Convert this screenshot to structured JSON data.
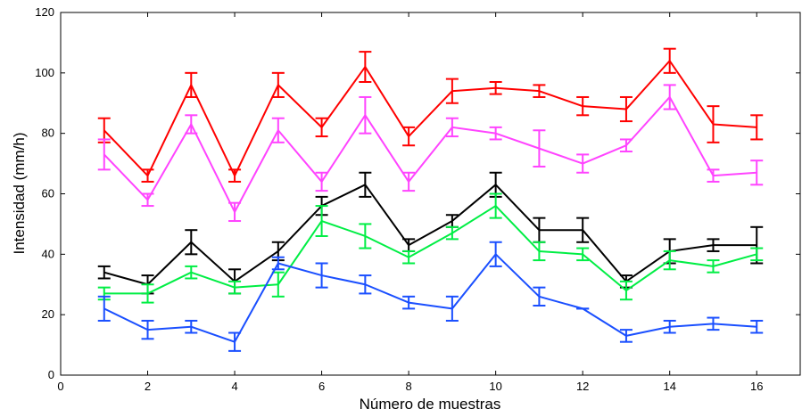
{
  "chart_data": {
    "type": "line",
    "title": "",
    "xlabel": "Número de muestras",
    "ylabel": "Intensidad (mm/h)",
    "xlim": [
      0,
      17
    ],
    "ylim": [
      0,
      120
    ],
    "xticks": [
      0,
      2,
      4,
      6,
      8,
      10,
      12,
      14,
      16
    ],
    "yticks": [
      0,
      20,
      40,
      60,
      80,
      100,
      120
    ],
    "grid": false,
    "legend": "none",
    "x": [
      1,
      2,
      3,
      4,
      5,
      6,
      7,
      8,
      9,
      10,
      11,
      12,
      13,
      14,
      15,
      16
    ],
    "series": [
      {
        "color": "#ff0000",
        "values": [
          81,
          66,
          96,
          66,
          96,
          82,
          102,
          79,
          94,
          95,
          94,
          89,
          88,
          104,
          83,
          82
        ],
        "errors": [
          4,
          2,
          4,
          2,
          4,
          3,
          5,
          3,
          4,
          2,
          2,
          3,
          4,
          4,
          6,
          4
        ]
      },
      {
        "color": "#ff44ff",
        "values": [
          73,
          58,
          83,
          54,
          81,
          64,
          86,
          64,
          82,
          80,
          75,
          70,
          76,
          92,
          66,
          67
        ],
        "errors": [
          5,
          2,
          3,
          3,
          4,
          3,
          6,
          3,
          3,
          2,
          6,
          3,
          2,
          4,
          2,
          4
        ]
      },
      {
        "color": "#000000",
        "values": [
          34,
          30,
          44,
          31,
          41,
          56,
          63,
          43,
          51,
          63,
          48,
          48,
          31,
          41,
          43,
          43
        ],
        "errors": [
          2,
          3,
          4,
          4,
          3,
          3,
          4,
          2,
          2,
          4,
          4,
          4,
          2,
          4,
          2,
          6
        ]
      },
      {
        "color": "#00ee44",
        "values": [
          27,
          27,
          34,
          29,
          30,
          51,
          46,
          39,
          47,
          56,
          41,
          40,
          28,
          38,
          36,
          40
        ],
        "errors": [
          2,
          3,
          2,
          2,
          4,
          5,
          4,
          2,
          2,
          4,
          3,
          2,
          3,
          3,
          2,
          2
        ]
      },
      {
        "color": "#1a4fff",
        "values": [
          22,
          15,
          16,
          11,
          37,
          33,
          30,
          24,
          22,
          40,
          26,
          22,
          13,
          16,
          17,
          16
        ],
        "errors": [
          4,
          3,
          2,
          3,
          2,
          4,
          3,
          2,
          4,
          4,
          3,
          0,
          2,
          2,
          2,
          2
        ]
      }
    ]
  }
}
